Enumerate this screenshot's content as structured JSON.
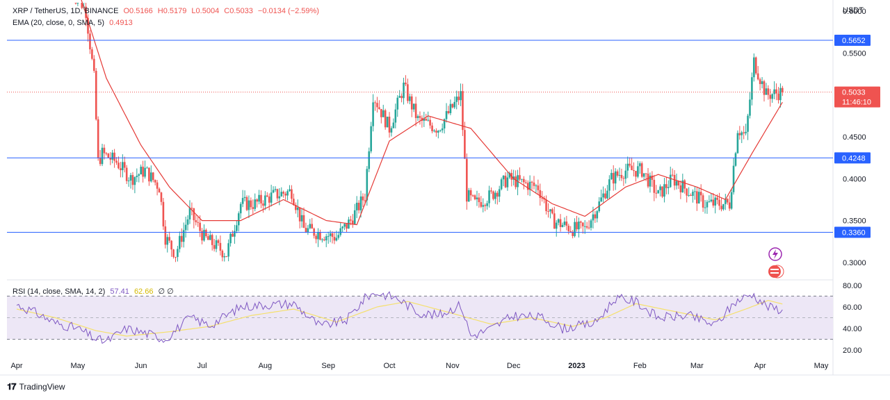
{
  "legend": {
    "symbol": "XRP / TetherUS, 1D, BINANCE",
    "open": "O0.5166",
    "high": "H0.5179",
    "low": "L0.5004",
    "close": "C0.5033",
    "change": "−0.0134 (−2.59%)",
    "ema": "EMA (20, close, 0, SMA, 5)",
    "ema_value": "0.4913",
    "rsi": "RSI (14, close, SMA, 14, 2)",
    "rsi_value": "57.41",
    "rsi_ma_value": "62.66",
    "rsi_extra": "∅  ∅"
  },
  "branding": {
    "text": "TradingView"
  },
  "colors": {
    "up": "#26a69a",
    "down": "#ef5350",
    "ema": "#e53935",
    "level_line": "#2962ff",
    "rsi_line": "#7e57c2",
    "rsi_ma": "#f5e06c",
    "rsi_band": "#ede7f6"
  },
  "chart_data": [
    {
      "type": "candlestick",
      "title": "XRP / TetherUS, 1D, BINANCE",
      "y_axis_title": "USDT",
      "ylim": [
        0.28,
        0.61
      ],
      "y_ticks": [
        "0.3000",
        "0.3500",
        "0.4000",
        "0.4500",
        "0.5500",
        "0.6000"
      ],
      "x_ticks": [
        "Apr",
        "May",
        "Jun",
        "Jul",
        "Aug",
        "Sep",
        "Oct",
        "Nov",
        "Dec",
        "2023",
        "Feb",
        "Mar",
        "Apr",
        "May"
      ],
      "horizontal_levels": [
        0.5652,
        0.4248,
        0.336
      ],
      "level_labels": [
        "0.5652",
        "0.4248",
        "0.3360"
      ],
      "last_price": 0.5033,
      "last_price_label": "0.5033",
      "countdown_label": "11:46:10",
      "close_path": [
        [
          "2022-04-28",
          0.63
        ],
        [
          "2022-05-05",
          0.6
        ],
        [
          "2022-05-09",
          0.52
        ],
        [
          "2022-05-11",
          0.42
        ],
        [
          "2022-05-13",
          0.43
        ],
        [
          "2022-05-20",
          0.42
        ],
        [
          "2022-05-27",
          0.4
        ],
        [
          "2022-06-03",
          0.41
        ],
        [
          "2022-06-10",
          0.39
        ],
        [
          "2022-06-13",
          0.33
        ],
        [
          "2022-06-18",
          0.31
        ],
        [
          "2022-06-25",
          0.36
        ],
        [
          "2022-07-02",
          0.33
        ],
        [
          "2022-07-13",
          0.31
        ],
        [
          "2022-07-20",
          0.37
        ],
        [
          "2022-07-27",
          0.37
        ],
        [
          "2022-08-05",
          0.38
        ],
        [
          "2022-08-14",
          0.385
        ],
        [
          "2022-08-20",
          0.34
        ],
        [
          "2022-08-27",
          0.335
        ],
        [
          "2022-09-05",
          0.33
        ],
        [
          "2022-09-12",
          0.35
        ],
        [
          "2022-09-19",
          0.38
        ],
        [
          "2022-09-23",
          0.5
        ],
        [
          "2022-10-01",
          0.46
        ],
        [
          "2022-10-08",
          0.51
        ],
        [
          "2022-10-15",
          0.47
        ],
        [
          "2022-10-25",
          0.46
        ],
        [
          "2022-11-05",
          0.5
        ],
        [
          "2022-11-08",
          0.38
        ],
        [
          "2022-11-12",
          0.37
        ],
        [
          "2022-11-20",
          0.38
        ],
        [
          "2022-11-28",
          0.4
        ],
        [
          "2022-12-05",
          0.395
        ],
        [
          "2022-12-13",
          0.39
        ],
        [
          "2022-12-20",
          0.35
        ],
        [
          "2022-12-30",
          0.34
        ],
        [
          "2023-01-05",
          0.34
        ],
        [
          "2023-01-12",
          0.37
        ],
        [
          "2023-01-18",
          0.4
        ],
        [
          "2023-01-25",
          0.41
        ],
        [
          "2023-02-02",
          0.41
        ],
        [
          "2023-02-10",
          0.38
        ],
        [
          "2023-02-17",
          0.4
        ],
        [
          "2023-02-25",
          0.385
        ],
        [
          "2023-03-05",
          0.37
        ],
        [
          "2023-03-10",
          0.37
        ],
        [
          "2023-03-17",
          0.37
        ],
        [
          "2023-03-21",
          0.46
        ],
        [
          "2023-03-25",
          0.45
        ],
        [
          "2023-03-29",
          0.54
        ],
        [
          "2023-04-04",
          0.5
        ],
        [
          "2023-04-12",
          0.5033
        ]
      ],
      "ema_path": [
        [
          "2022-04-28",
          0.65
        ],
        [
          "2022-05-15",
          0.52
        ],
        [
          "2022-06-01",
          0.44
        ],
        [
          "2022-06-15",
          0.39
        ],
        [
          "2022-07-01",
          0.35
        ],
        [
          "2022-07-20",
          0.35
        ],
        [
          "2022-08-10",
          0.375
        ],
        [
          "2022-08-31",
          0.35
        ],
        [
          "2022-09-15",
          0.345
        ],
        [
          "2022-10-01",
          0.445
        ],
        [
          "2022-10-20",
          0.475
        ],
        [
          "2022-11-10",
          0.46
        ],
        [
          "2022-12-01",
          0.4
        ],
        [
          "2022-12-20",
          0.37
        ],
        [
          "2023-01-05",
          0.355
        ],
        [
          "2023-01-25",
          0.39
        ],
        [
          "2023-02-10",
          0.405
        ],
        [
          "2023-03-01",
          0.39
        ],
        [
          "2023-03-15",
          0.375
        ],
        [
          "2023-03-28",
          0.43
        ],
        [
          "2023-04-12",
          0.4913
        ]
      ]
    },
    {
      "type": "line",
      "title": "RSI (14, close, SMA, 14, 2)",
      "ylim": [
        15,
        85
      ],
      "y_ticks": [
        "20.00",
        "40.00",
        "60.00",
        "80.00"
      ],
      "band": [
        30,
        70
      ],
      "midline": 50,
      "series": [
        {
          "name": "RSI",
          "path": [
            [
              "2022-04-01",
              62
            ],
            [
              "2022-04-10",
              55
            ],
            [
              "2022-04-20",
              45
            ],
            [
              "2022-05-01",
              40
            ],
            [
              "2022-05-10",
              30
            ],
            [
              "2022-05-15",
              28
            ],
            [
              "2022-05-25",
              40
            ],
            [
              "2022-06-05",
              35
            ],
            [
              "2022-06-13",
              30
            ],
            [
              "2022-06-25",
              50
            ],
            [
              "2022-07-05",
              43
            ],
            [
              "2022-07-20",
              60
            ],
            [
              "2022-08-01",
              62
            ],
            [
              "2022-08-15",
              63
            ],
            [
              "2022-08-28",
              42
            ],
            [
              "2022-09-10",
              48
            ],
            [
              "2022-09-20",
              70
            ],
            [
              "2022-09-25",
              73
            ],
            [
              "2022-10-05",
              68
            ],
            [
              "2022-10-15",
              55
            ],
            [
              "2022-10-25",
              52
            ],
            [
              "2022-11-05",
              62
            ],
            [
              "2022-11-10",
              33
            ],
            [
              "2022-11-20",
              40
            ],
            [
              "2022-12-01",
              52
            ],
            [
              "2022-12-15",
              50
            ],
            [
              "2022-12-25",
              40
            ],
            [
              "2023-01-10",
              45
            ],
            [
              "2023-01-20",
              68
            ],
            [
              "2023-01-30",
              65
            ],
            [
              "2023-02-10",
              50
            ],
            [
              "2023-02-25",
              52
            ],
            [
              "2023-03-10",
              43
            ],
            [
              "2023-03-20",
              65
            ],
            [
              "2023-03-28",
              72
            ],
            [
              "2023-04-05",
              60
            ],
            [
              "2023-04-12",
              57.41
            ]
          ]
        },
        {
          "name": "SMA",
          "path": [
            [
              "2022-04-01",
              58
            ],
            [
              "2022-04-20",
              50
            ],
            [
              "2022-05-10",
              38
            ],
            [
              "2022-05-25",
              33
            ],
            [
              "2022-06-15",
              37
            ],
            [
              "2022-07-05",
              42
            ],
            [
              "2022-07-25",
              52
            ],
            [
              "2022-08-15",
              58
            ],
            [
              "2022-09-05",
              46
            ],
            [
              "2022-09-25",
              60
            ],
            [
              "2022-10-10",
              65
            ],
            [
              "2022-10-30",
              55
            ],
            [
              "2022-11-20",
              44
            ],
            [
              "2022-12-10",
              50
            ],
            [
              "2022-12-30",
              42
            ],
            [
              "2023-01-15",
              50
            ],
            [
              "2023-01-30",
              63
            ],
            [
              "2023-02-20",
              55
            ],
            [
              "2023-03-10",
              48
            ],
            [
              "2023-03-25",
              58
            ],
            [
              "2023-04-05",
              66
            ],
            [
              "2023-04-12",
              62.66
            ]
          ]
        }
      ]
    }
  ]
}
